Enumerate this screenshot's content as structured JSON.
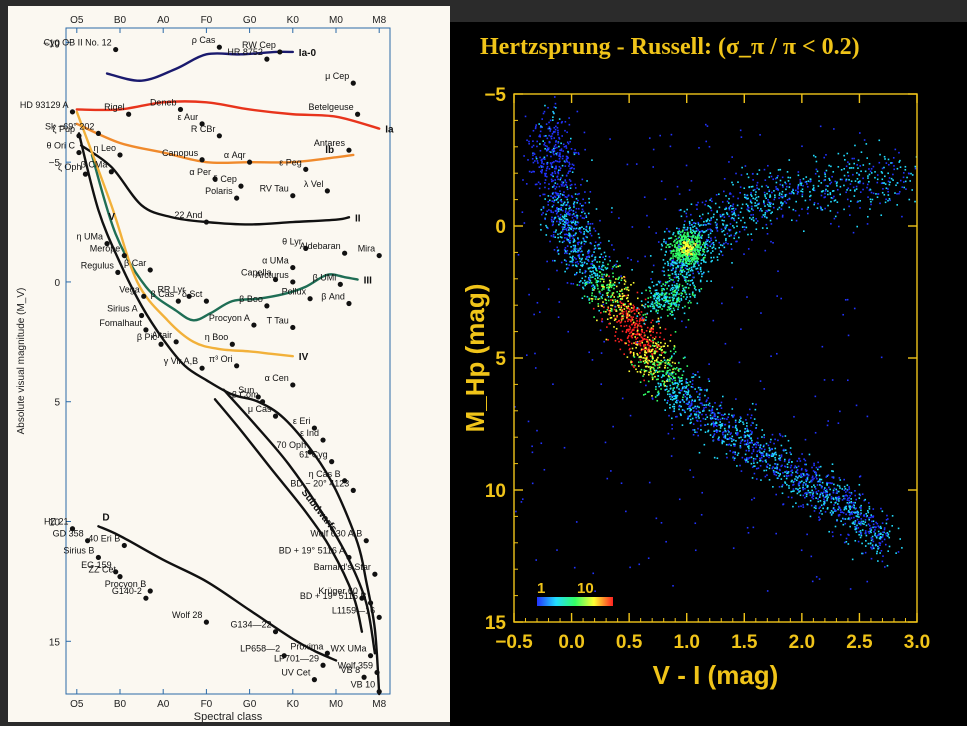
{
  "chart_data": [
    {
      "type": "scatter",
      "subtype": "annotated-hr-diagram",
      "title": "",
      "xlabel": "Spectral class",
      "ylabel": "Absolute visual magnitude (M_V)",
      "x_tick_labels": [
        "O5",
        "B0",
        "A0",
        "F0",
        "G0",
        "K0",
        "M0",
        "M8"
      ],
      "x_index_for_ticks": [
        0,
        1,
        2,
        3,
        4,
        5,
        6,
        7
      ],
      "ylim": [
        -10,
        17
      ],
      "y_ticks": [
        -10,
        -5,
        0,
        5,
        10,
        15
      ],
      "y_tick_labels": [
        "−10",
        "−5",
        "0",
        "5",
        "10",
        "15"
      ],
      "grid": false,
      "background": "#fbf8f1",
      "luminosity_classes": [
        {
          "name": "Ia-0",
          "color": "#1a1a6e",
          "points": [
            [
              0.7,
              -8.7
            ],
            [
              1.5,
              -8.4
            ],
            [
              2.3,
              -8.9
            ],
            [
              3.0,
              -9.5
            ],
            [
              3.8,
              -9.5
            ],
            [
              4.6,
              -9.6
            ],
            [
              5.0,
              -9.6
            ]
          ]
        },
        {
          "name": "Ia",
          "color": "#e8341c",
          "points": [
            [
              0.0,
              -7.2
            ],
            [
              1.0,
              -7.2
            ],
            [
              2.0,
              -7.5
            ],
            [
              3.0,
              -7.5
            ],
            [
              4.0,
              -7.2
            ],
            [
              5.0,
              -7.0
            ],
            [
              6.0,
              -6.9
            ],
            [
              7.0,
              -6.4
            ]
          ]
        },
        {
          "name": "Ib",
          "color": "#f08a2c",
          "points": [
            [
              0.0,
              -6.6
            ],
            [
              1.0,
              -5.8
            ],
            [
              2.0,
              -5.4
            ],
            [
              3.0,
              -5.0
            ],
            [
              4.0,
              -5.0
            ],
            [
              5.0,
              -5.0
            ],
            [
              6.0,
              -5.2
            ],
            [
              6.4,
              -5.3
            ]
          ]
        },
        {
          "name": "II",
          "color": "#111111",
          "points": [
            [
              0.1,
              -5.7
            ],
            [
              0.8,
              -4.8
            ],
            [
              1.5,
              -3.2
            ],
            [
              2.2,
              -2.7
            ],
            [
              3.0,
              -2.5
            ],
            [
              4.0,
              -2.4
            ],
            [
              5.0,
              -2.5
            ],
            [
              6.0,
              -2.6
            ],
            [
              6.3,
              -2.7
            ]
          ]
        },
        {
          "name": "III",
          "color": "#1f6e55",
          "points": [
            [
              0.35,
              -5.3
            ],
            [
              0.9,
              -2.0
            ],
            [
              1.6,
              0.2
            ],
            [
              2.3,
              1.2
            ],
            [
              2.7,
              1.6
            ],
            [
              3.1,
              1.3
            ],
            [
              3.6,
              0.8
            ],
            [
              4.2,
              0.7
            ],
            [
              4.8,
              0.5
            ],
            [
              5.3,
              0.2
            ],
            [
              5.8,
              -0.3
            ],
            [
              6.2,
              -0.2
            ],
            [
              6.5,
              -0.1
            ]
          ]
        },
        {
          "name": "IV",
          "color": "#f2b13a",
          "points": [
            [
              0.0,
              -7.1
            ],
            [
              0.8,
              -3.2
            ],
            [
              1.4,
              0.0
            ],
            [
              2.1,
              1.6
            ],
            [
              2.7,
              2.5
            ],
            [
              3.3,
              2.8
            ],
            [
              4.0,
              2.9
            ],
            [
              4.5,
              3.0
            ],
            [
              5.0,
              3.1
            ]
          ]
        },
        {
          "name": "V",
          "color": "#111111",
          "points": [
            [
              0.05,
              -6.2
            ],
            [
              0.5,
              -3.0
            ],
            [
              1.0,
              -0.8
            ],
            [
              1.5,
              1.0
            ],
            [
              2.0,
              2.4
            ],
            [
              2.5,
              3.5
            ],
            [
              3.0,
              4.1
            ],
            [
              3.6,
              4.7
            ],
            [
              4.2,
              5.0
            ],
            [
              4.8,
              5.7
            ],
            [
              5.5,
              7.2
            ],
            [
              6.0,
              8.7
            ],
            [
              6.5,
              10.9
            ],
            [
              6.7,
              12.5
            ],
            [
              6.9,
              14.5
            ],
            [
              7.0,
              17.2
            ]
          ]
        },
        {
          "name": "Subdwarfs",
          "color": "#111111",
          "points": [
            [
              3.4,
              4.5
            ],
            [
              4.1,
              5.9
            ],
            [
              4.9,
              7.6
            ],
            [
              5.7,
              9.7
            ],
            [
              6.3,
              11.6
            ],
            [
              6.7,
              13.4
            ],
            [
              6.9,
              15.5
            ]
          ]
        },
        {
          "name": "Subdwarfs-upper",
          "color": "#111111",
          "points": [
            [
              3.2,
              4.9
            ],
            [
              3.8,
              6.2
            ],
            [
              4.5,
              7.8
            ],
            [
              5.3,
              9.6
            ],
            [
              5.9,
              11.2
            ],
            [
              6.4,
              13.1
            ],
            [
              6.6,
              14.6
            ]
          ]
        },
        {
          "name": "D",
          "color": "#111111",
          "points": [
            [
              0.5,
              10.2
            ],
            [
              1.0,
              10.6
            ],
            [
              2.0,
              11.6
            ],
            [
              3.0,
              12.5
            ],
            [
              4.0,
              13.7
            ],
            [
              5.0,
              14.9
            ],
            [
              5.5,
              15.4
            ],
            [
              6.0,
              15.8
            ]
          ]
        }
      ],
      "stars": [
        {
          "label": "ρ Cas",
          "x": 3.3,
          "y": -9.8
        },
        {
          "label": "RW Cep",
          "x": 4.7,
          "y": -9.6
        },
        {
          "label": "Cyg OB II No. 12",
          "x": 0.9,
          "y": -9.7
        },
        {
          "label": "HR 8752",
          "x": 4.4,
          "y": -9.3
        },
        {
          "label": "μ Cep",
          "x": 6.4,
          "y": -8.3
        },
        {
          "label": "HD 93129 A",
          "x": -0.1,
          "y": -7.1
        },
        {
          "label": "Rigel",
          "x": 1.2,
          "y": -7.0
        },
        {
          "label": "Deneb",
          "x": 2.4,
          "y": -7.2
        },
        {
          "label": "ε Aur",
          "x": 2.9,
          "y": -6.6
        },
        {
          "label": "Betelgeuse",
          "x": 6.5,
          "y": -7.0
        },
        {
          "label": "ζ Pup",
          "x": 0.05,
          "y": -6.1
        },
        {
          "label": "Sk −69° 202",
          "x": 0.5,
          "y": -6.2
        },
        {
          "label": "R CBr",
          "x": 3.3,
          "y": -6.1
        },
        {
          "label": "Antares",
          "x": 6.3,
          "y": -5.5
        },
        {
          "label": "θ Ori C",
          "x": 0.05,
          "y": -5.4
        },
        {
          "label": "η Leo",
          "x": 1.0,
          "y": -5.3
        },
        {
          "label": "Canopus",
          "x": 2.9,
          "y": -5.1
        },
        {
          "label": "α Aqr",
          "x": 4.0,
          "y": -5.0
        },
        {
          "label": "ε Peg",
          "x": 5.3,
          "y": -4.7
        },
        {
          "label": "ζ Oph",
          "x": 0.2,
          "y": -4.5
        },
        {
          "label": "β CMa",
          "x": 0.8,
          "y": -4.6
        },
        {
          "label": "α Per",
          "x": 3.2,
          "y": -4.3
        },
        {
          "label": "δ Cep",
          "x": 3.8,
          "y": -4.0
        },
        {
          "label": "λ Vel",
          "x": 5.8,
          "y": -3.8
        },
        {
          "label": "Polaris",
          "x": 3.7,
          "y": -3.5
        },
        {
          "label": "RV Tau",
          "x": 5.0,
          "y": -3.6
        },
        {
          "label": "22 And",
          "x": 3.0,
          "y": -2.5
        },
        {
          "label": "θ Lyr",
          "x": 5.3,
          "y": -1.4
        },
        {
          "label": "η UMa",
          "x": 0.7,
          "y": -1.6
        },
        {
          "label": "Merope",
          "x": 1.1,
          "y": -1.1
        },
        {
          "label": "Mira",
          "x": 7.0,
          "y": -1.1
        },
        {
          "label": "Aldebaran",
          "x": 6.2,
          "y": -1.2
        },
        {
          "label": "α UMa",
          "x": 5.0,
          "y": -0.6
        },
        {
          "label": "Regulus",
          "x": 0.95,
          "y": -0.4
        },
        {
          "label": "β Car",
          "x": 1.7,
          "y": -0.5
        },
        {
          "label": "Capella",
          "x": 4.6,
          "y": -0.1
        },
        {
          "label": "β UMi",
          "x": 6.1,
          "y": 0.1
        },
        {
          "label": "Vega",
          "x": 1.55,
          "y": 0.6
        },
        {
          "label": "β Cas",
          "x": 2.35,
          "y": 0.8
        },
        {
          "label": "RR Lyr",
          "x": 2.6,
          "y": 0.6
        },
        {
          "label": "Arcturus",
          "x": 5.0,
          "y": 0.0
        },
        {
          "label": "Pollux",
          "x": 5.4,
          "y": 0.7
        },
        {
          "label": "δ Sct",
          "x": 3.0,
          "y": 0.8
        },
        {
          "label": "β And",
          "x": 6.3,
          "y": 0.9
        },
        {
          "label": "Sirius A",
          "x": 1.5,
          "y": 1.4
        },
        {
          "label": "β Boo",
          "x": 4.4,
          "y": 1.0
        },
        {
          "label": "Fomalhaut",
          "x": 1.6,
          "y": 2.0
        },
        {
          "label": "Procyon A",
          "x": 4.1,
          "y": 1.8
        },
        {
          "label": "T Tau",
          "x": 5.0,
          "y": 1.9
        },
        {
          "label": "β Pic",
          "x": 1.95,
          "y": 2.6
        },
        {
          "label": "η Boo",
          "x": 3.6,
          "y": 2.6
        },
        {
          "label": "Altair",
          "x": 2.3,
          "y": 2.5
        },
        {
          "label": "π³ Ori",
          "x": 3.7,
          "y": 3.5
        },
        {
          "label": "γ Vir A,B",
          "x": 2.9,
          "y": 3.6
        },
        {
          "label": "α Cen",
          "x": 5.0,
          "y": 4.3
        },
        {
          "label": "Sun",
          "x": 4.2,
          "y": 4.8
        },
        {
          "label": "β Com",
          "x": 4.3,
          "y": 5.0
        },
        {
          "label": "μ Cas",
          "x": 4.6,
          "y": 5.6
        },
        {
          "label": "ε Eri",
          "x": 5.5,
          "y": 6.1
        },
        {
          "label": "ε Ind",
          "x": 5.7,
          "y": 6.6
        },
        {
          "label": "70 Oph",
          "x": 5.4,
          "y": 7.1
        },
        {
          "label": "61 Cyg",
          "x": 5.9,
          "y": 7.5
        },
        {
          "label": "η Cas B",
          "x": 6.2,
          "y": 8.3
        },
        {
          "label": "BD − 20° 4123",
          "x": 6.4,
          "y": 8.7
        },
        {
          "label": "HZ 21",
          "x": -0.1,
          "y": 10.3
        },
        {
          "label": "40 Eri B",
          "x": 1.1,
          "y": 11.0
        },
        {
          "label": "GD 358",
          "x": 0.25,
          "y": 10.8
        },
        {
          "label": "Wolf 630 A,B",
          "x": 6.7,
          "y": 10.8
        },
        {
          "label": "Sirius B",
          "x": 0.5,
          "y": 11.5
        },
        {
          "label": "BD + 19° 5116 A",
          "x": 6.3,
          "y": 11.5
        },
        {
          "label": "Barnard's Star",
          "x": 6.9,
          "y": 12.2
        },
        {
          "label": "EG 159",
          "x": 0.9,
          "y": 12.1
        },
        {
          "label": "ZZ Cet",
          "x": 1.0,
          "y": 12.3
        },
        {
          "label": "Procyon B",
          "x": 1.7,
          "y": 12.9
        },
        {
          "label": "Krüger 60",
          "x": 6.6,
          "y": 13.2
        },
        {
          "label": "G140-2",
          "x": 1.6,
          "y": 13.2
        },
        {
          "label": "BD + 19° 5116 B",
          "x": 6.8,
          "y": 13.4
        },
        {
          "label": "Wolf 28",
          "x": 3.0,
          "y": 14.2
        },
        {
          "label": "G134—22",
          "x": 4.6,
          "y": 14.6
        },
        {
          "label": "L1159—16",
          "x": 7.0,
          "y": 14.0
        },
        {
          "label": "Proxima",
          "x": 5.8,
          "y": 15.5
        },
        {
          "label": "WX UMa",
          "x": 6.8,
          "y": 15.6
        },
        {
          "label": "LP658—2",
          "x": 4.8,
          "y": 15.6
        },
        {
          "label": "LP701—29",
          "x": 5.7,
          "y": 16.0
        },
        {
          "label": "Wolf 359",
          "x": 6.95,
          "y": 16.3
        },
        {
          "label": "VB 8",
          "x": 6.65,
          "y": 16.5
        },
        {
          "label": "UV Cet",
          "x": 5.5,
          "y": 16.6
        },
        {
          "label": "VB 10",
          "x": 7.0,
          "y": 17.1
        }
      ]
    },
    {
      "type": "heatmap",
      "title": "Hertzsprung - Russell:  (σ_π / π < 0.2)",
      "xlabel": "V - I  (mag)",
      "ylabel": "M_Hp (mag)",
      "xlim": [
        -0.5,
        3.0
      ],
      "ylim": [
        -5,
        15
      ],
      "x_ticks": [
        -0.5,
        0.0,
        0.5,
        1.0,
        1.5,
        2.0,
        2.5,
        3.0
      ],
      "x_tick_labels": [
        "−0.5",
        "0.0",
        "0.5",
        "1.0",
        "1.5",
        "2.0",
        "2.5",
        "3.0"
      ],
      "y_ticks": [
        -5,
        0,
        5,
        10,
        15
      ],
      "y_tick_labels": [
        "−5",
        "0",
        "5",
        "10",
        "15"
      ],
      "y_inverted": true,
      "colorbar": {
        "min_label": "1",
        "max_label": "10",
        "min": 1,
        "max": 10,
        "colors": [
          "#2233ff",
          "#22ddff",
          "#33ff66",
          "#ffff33",
          "#ff2222"
        ]
      },
      "axis_color": "#f0c419",
      "background": "#000000",
      "density_structure": [
        {
          "feature": "main sequence",
          "path": [
            [
              -0.1,
              -1.0
            ],
            [
              0.05,
              0.8
            ],
            [
              0.3,
              2.3
            ],
            [
              0.5,
              3.5
            ],
            [
              0.65,
              4.6
            ],
            [
              0.8,
              5.6
            ],
            [
              1.0,
              6.6
            ],
            [
              1.3,
              7.6
            ],
            [
              1.6,
              8.5
            ],
            [
              1.9,
              9.3
            ],
            [
              2.2,
              10.2
            ],
            [
              2.5,
              11.0
            ],
            [
              2.7,
              12.0
            ]
          ],
          "peak": [
            0.55,
            3.8
          ]
        },
        {
          "feature": "red clump",
          "center": [
            1.0,
            0.8
          ],
          "peak_value": 9
        },
        {
          "feature": "red giant branch",
          "path": [
            [
              0.9,
              1.5
            ],
            [
              1.1,
              0.5
            ],
            [
              1.3,
              -0.2
            ],
            [
              1.6,
              -1.0
            ],
            [
              2.0,
              -1.5
            ],
            [
              2.5,
              -1.7
            ],
            [
              2.9,
              -1.8
            ]
          ]
        },
        {
          "feature": "subgiant branch",
          "path": [
            [
              0.7,
              2.6
            ],
            [
              0.8,
              3.0
            ],
            [
              0.95,
              2.5
            ],
            [
              1.0,
              1.4
            ]
          ]
        },
        {
          "feature": "upper main sequence",
          "path": [
            [
              -0.2,
              -3.5
            ],
            [
              -0.15,
              -2.5
            ],
            [
              -0.1,
              -1.5
            ]
          ]
        }
      ]
    }
  ]
}
